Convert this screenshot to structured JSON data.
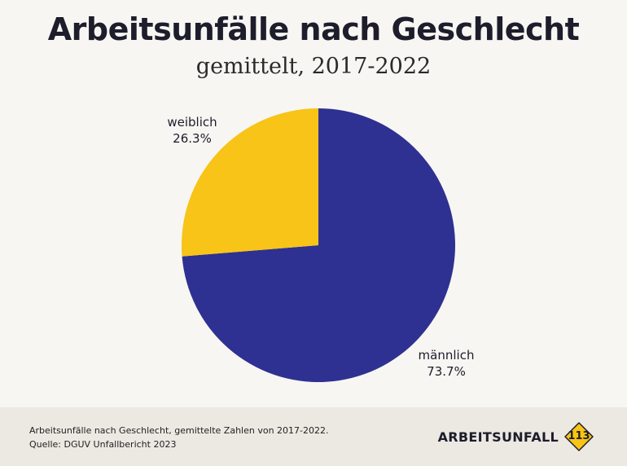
{
  "title": "Arbeitsunfälle nach Geschlecht",
  "subtitle": "gemittelt, 2017-2022",
  "chart_data": {
    "type": "pie",
    "slices": [
      {
        "label": "männlich",
        "value": 73.7,
        "display": "73.7%",
        "color": "#2e3191"
      },
      {
        "label": "weiblich",
        "value": 26.3,
        "display": "26.3%",
        "color": "#f7c417"
      }
    ]
  },
  "footer": {
    "note": "Arbeitsunfälle nach Geschlecht, gemittelte Zahlen von 2017-2022.",
    "source": "Quelle: DGUV Unfallbericht 2023",
    "brand_name": "ARBEITSUNFALL",
    "brand_number": "113",
    "brand_color": "#f7c417"
  }
}
